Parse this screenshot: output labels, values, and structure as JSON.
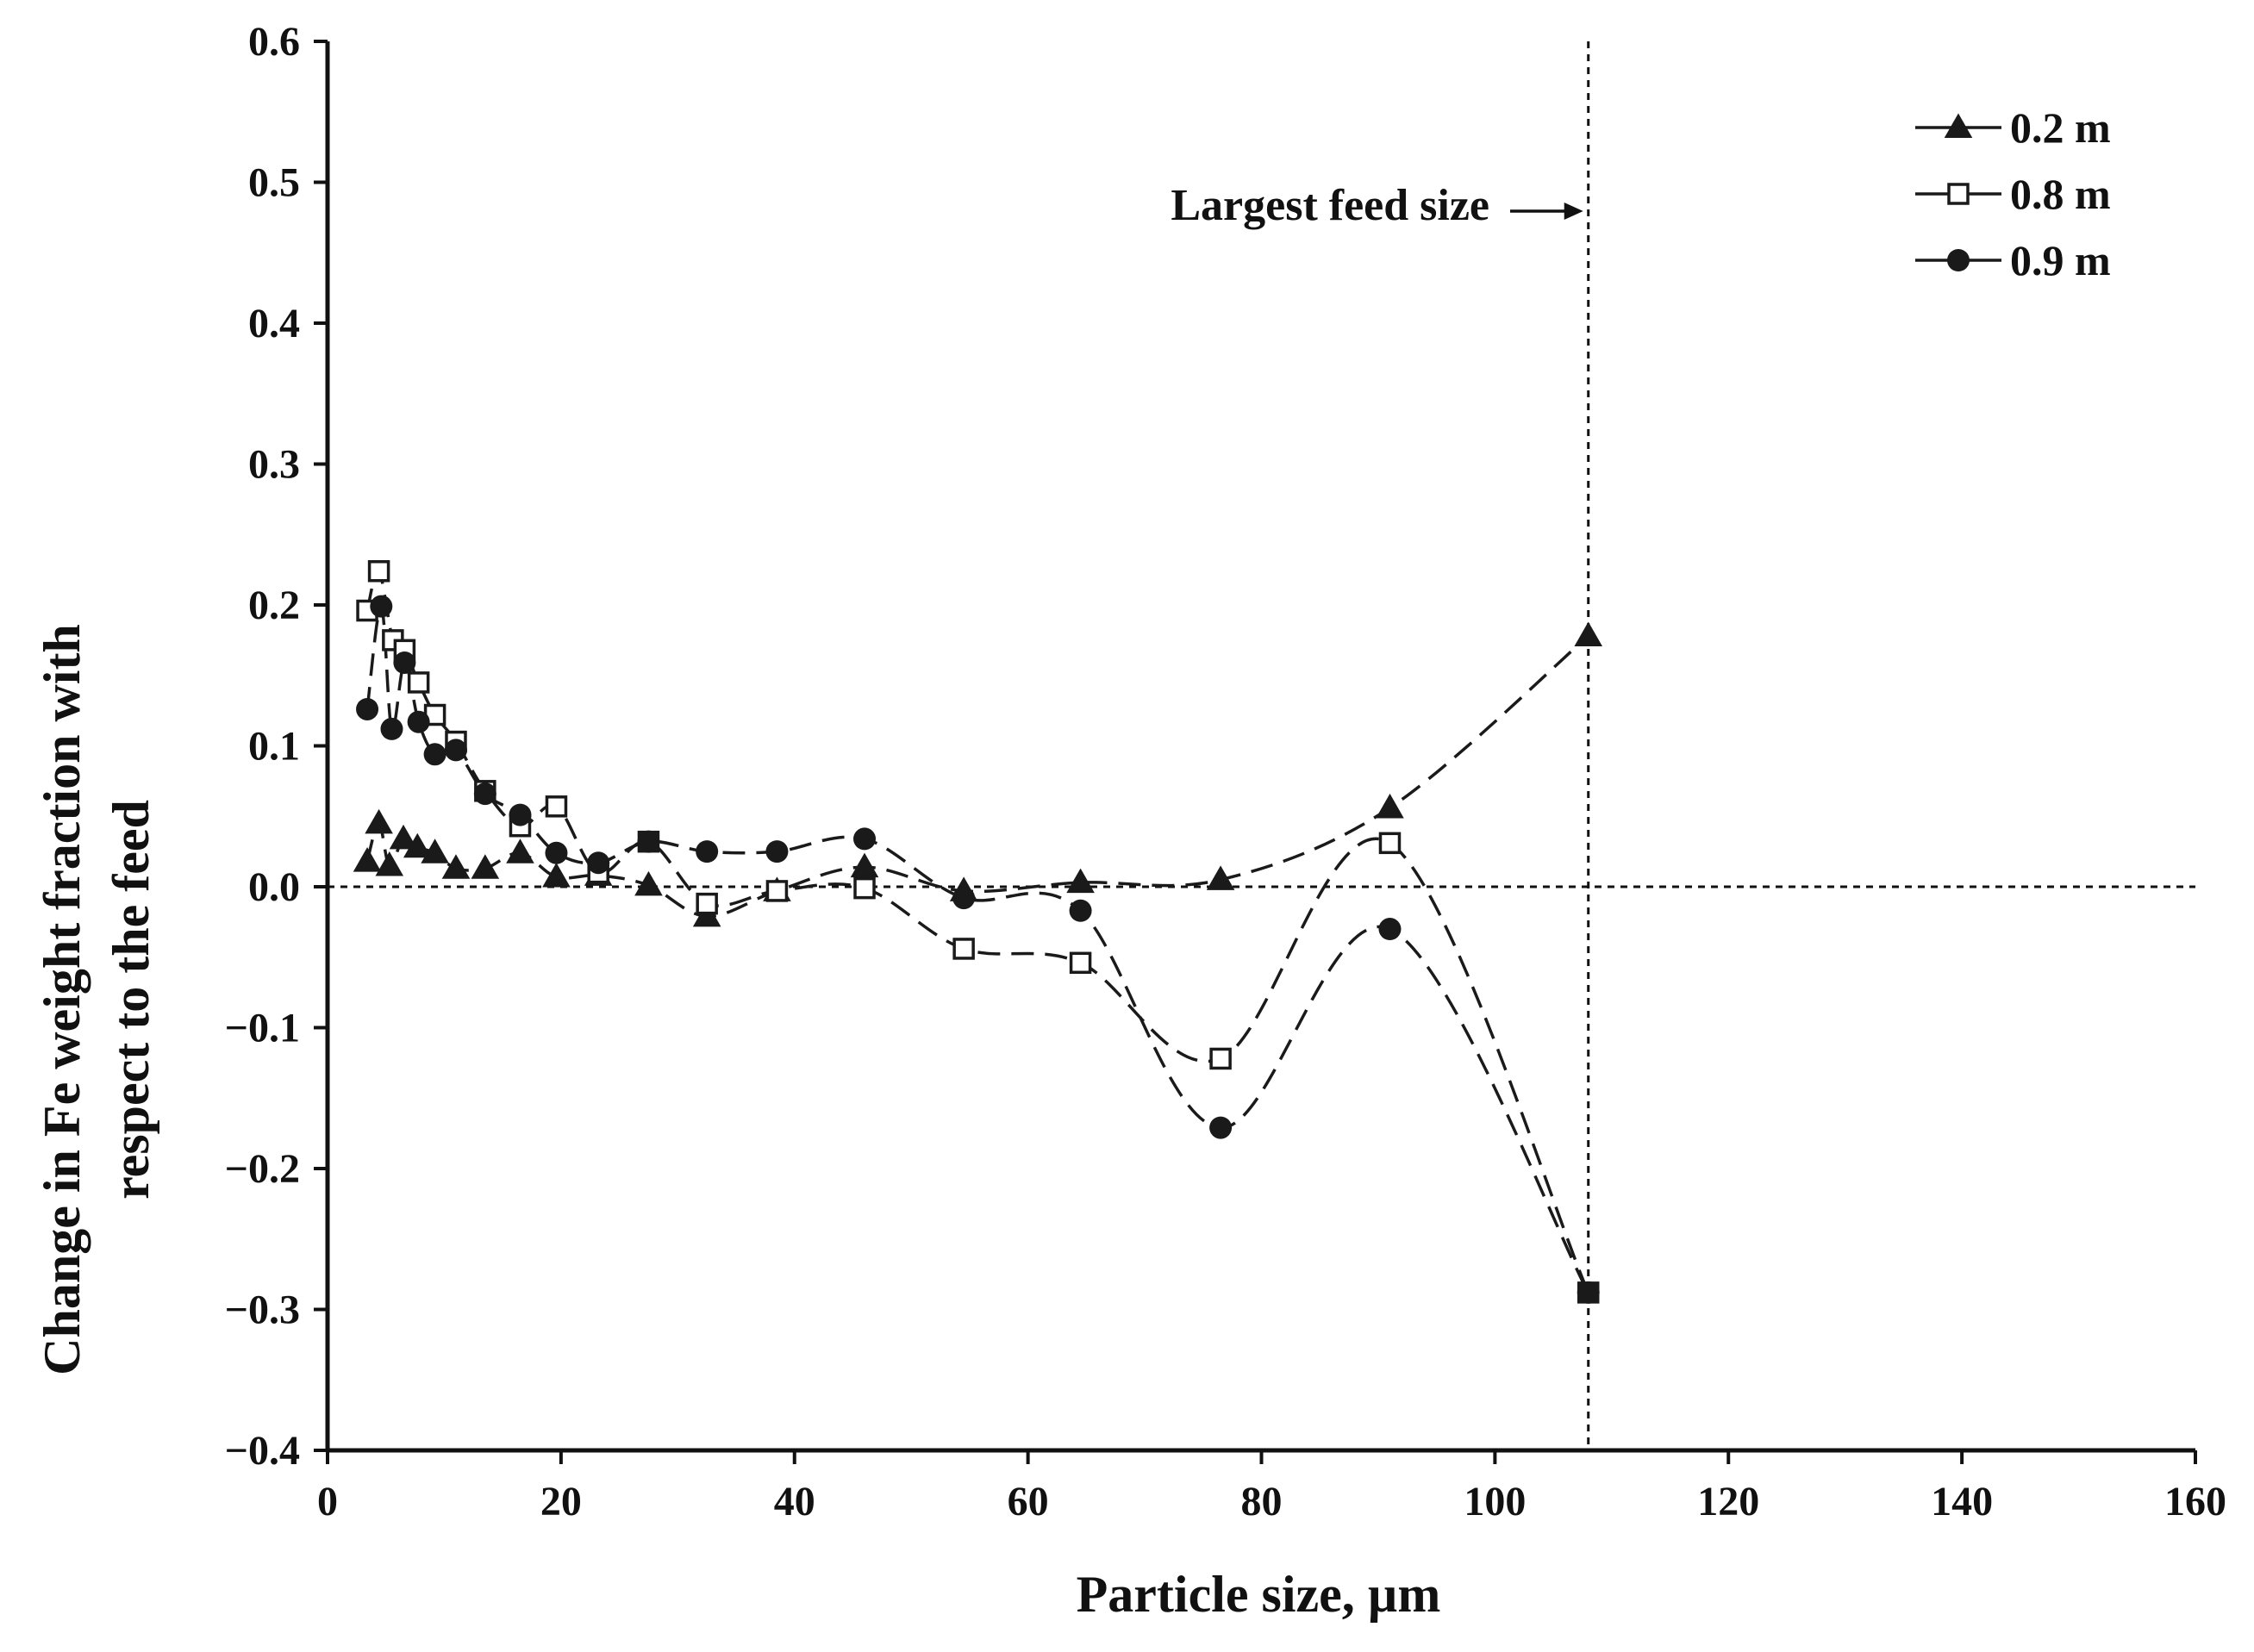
{
  "chart_data": {
    "type": "line",
    "title": "",
    "xlabel": "Particle size, µm",
    "ylabel_line1": "Change in Fe weight fraction with",
    "ylabel_line2": "respect to the feed",
    "xlim": [
      0,
      160
    ],
    "ylim": [
      -0.4,
      0.6
    ],
    "x_ticks": [
      0,
      20,
      40,
      60,
      80,
      100,
      120,
      140,
      160
    ],
    "y_ticks": [
      -0.4,
      -0.3,
      -0.2,
      -0.1,
      0.0,
      0.1,
      0.2,
      0.3,
      0.4,
      0.5,
      0.6
    ],
    "x_tick_labels": [
      "0",
      "20",
      "40",
      "60",
      "80",
      "100",
      "120",
      "140",
      "160"
    ],
    "y_tick_labels": [
      "−0.4",
      "−0.3",
      "−0.2",
      "−0.1",
      "0.0",
      "0.1",
      "0.2",
      "0.3",
      "0.4",
      "0.5",
      "0.6"
    ],
    "grid": false,
    "legend_position": "top-right",
    "reference_lines": [
      {
        "orientation": "horizontal",
        "value": 0.0,
        "style": "dotted"
      },
      {
        "orientation": "vertical",
        "value": 108,
        "style": "dotted"
      }
    ],
    "annotation": {
      "text": "Largest feed size",
      "points_to_x": 108,
      "at_y": 0.48
    },
    "colors": {
      "line": "#1a1a1a",
      "axis": "#111111",
      "background": "#ffffff"
    },
    "series": [
      {
        "name": "0.2 m",
        "marker": "filled-triangle",
        "x": [
          3.4,
          4.4,
          5.3,
          6.5,
          7.7,
          9.2,
          11.0,
          13.5,
          16.5,
          19.6,
          23.2,
          27.5,
          32.5,
          38.5,
          46.0,
          54.5,
          64.5,
          76.5,
          91.0,
          108.0
        ],
        "y": [
          0.018,
          0.045,
          0.015,
          0.034,
          0.028,
          0.024,
          0.013,
          0.013,
          0.024,
          0.007,
          0.008,
          0.001,
          -0.021,
          -0.003,
          0.014,
          -0.003,
          0.003,
          0.005,
          0.056,
          0.178
        ]
      },
      {
        "name": "0.8 m",
        "marker": "open-square",
        "x": [
          3.4,
          4.4,
          5.6,
          6.6,
          7.8,
          9.2,
          11.0,
          13.5,
          16.5,
          19.6,
          23.2,
          27.5,
          32.5,
          38.5,
          46.0,
          54.5,
          64.5,
          76.5,
          91.0,
          108.0
        ],
        "y": [
          0.196,
          0.224,
          0.175,
          0.168,
          0.145,
          0.122,
          0.103,
          0.068,
          0.043,
          0.057,
          0.01,
          0.032,
          -0.012,
          -0.003,
          -0.001,
          -0.044,
          -0.054,
          -0.122,
          0.031,
          -0.288
        ]
      },
      {
        "name": "0.9 m",
        "marker": "filled-circle",
        "x": [
          3.4,
          4.6,
          5.5,
          6.6,
          7.8,
          9.2,
          11.0,
          13.5,
          16.5,
          19.6,
          23.2,
          27.5,
          32.5,
          38.5,
          46.0,
          54.5,
          64.5,
          76.5,
          91.0,
          108.0
        ],
        "y": [
          0.126,
          0.199,
          0.112,
          0.159,
          0.117,
          0.094,
          0.097,
          0.066,
          0.051,
          0.024,
          0.017,
          0.032,
          0.025,
          0.025,
          0.034,
          -0.008,
          -0.017,
          -0.171,
          -0.03,
          -0.288
        ]
      }
    ]
  }
}
